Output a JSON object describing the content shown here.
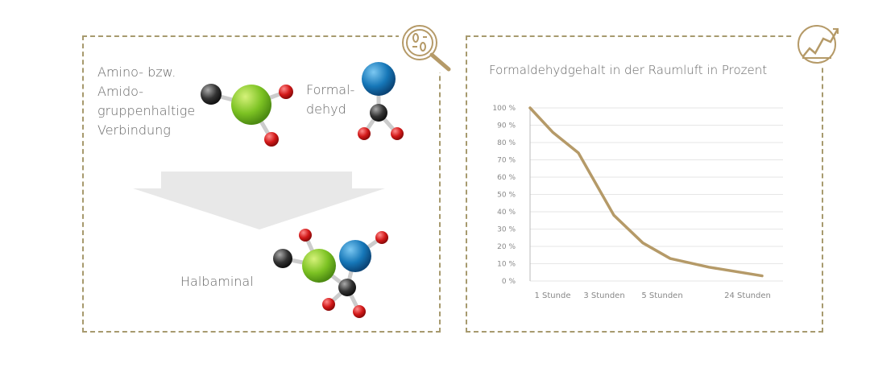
{
  "diagram": {
    "reactant_1_label": "Amino- bzw. Amido- gruppenhaltige Verbindung",
    "reactant_1_lines": [
      "Amino- bzw.",
      "Amido-",
      "gruppenhaltige",
      "Verbindung"
    ],
    "reactant_2_lines": [
      "Formal-",
      "dehyd"
    ],
    "product_label": "Halbaminal",
    "icon": "magnifier-bacteria-icon"
  },
  "chart_icon": "trend-chart-icon",
  "colors": {
    "accent": "#b59a68",
    "frame": "#a79a6e",
    "grid": "#e3e3e3"
  },
  "chart_data": {
    "type": "line",
    "title": "Formaldehydgehalt in der Raumluft in Prozent",
    "xlabel": "",
    "ylabel": "",
    "ylim": [
      0,
      100
    ],
    "y_ticks": [
      "0 %",
      "10 %",
      "20 %",
      "30 %",
      "40 %",
      "50 %",
      "60 %",
      "70 %",
      "80 %",
      "90 %",
      "100 %"
    ],
    "x_ticks": [
      "1 Stunde",
      "3 Stunden",
      "5 Stunden",
      "24 Stunden"
    ],
    "grid": true,
    "series": [
      {
        "values": [
          100,
          86,
          74,
          56,
          38,
          22,
          13,
          8,
          3
        ]
      }
    ]
  }
}
